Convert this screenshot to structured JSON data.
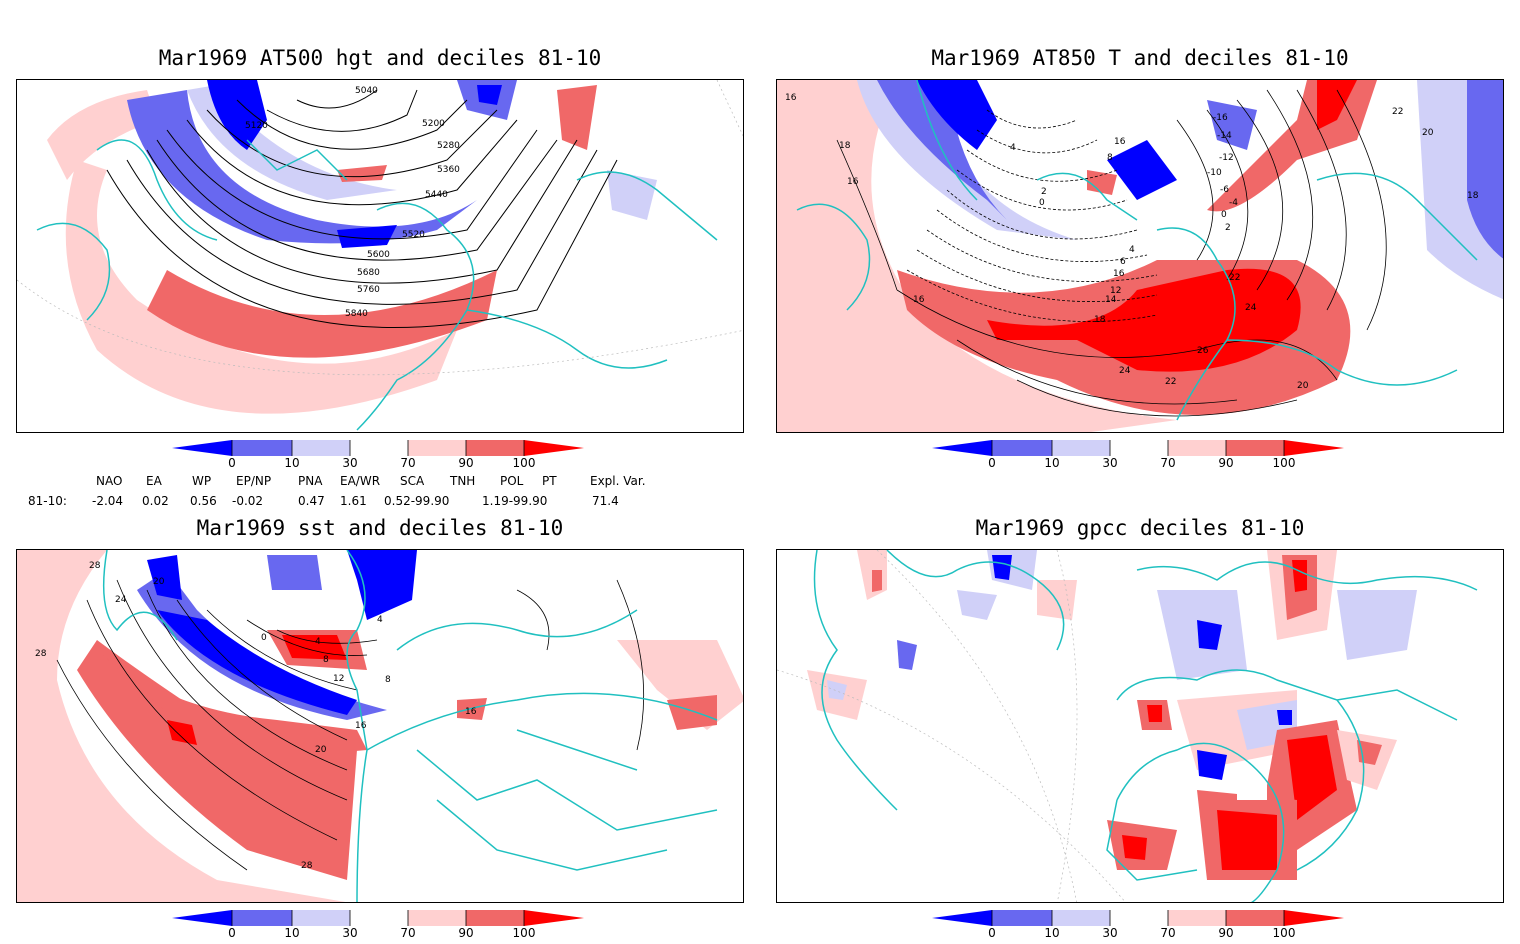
{
  "panels": [
    {
      "title": "Mar1969 AT500 hgt and deciles 81-10",
      "contour_labels": [
        "5040",
        "5120",
        "5200",
        "5280",
        "5360",
        "5440",
        "5520",
        "5600",
        "5680",
        "5760",
        "5840"
      ]
    },
    {
      "title": "Mar1969 AT850 T and deciles 81-10",
      "contour_labels": [
        "16",
        "18",
        "16",
        "22",
        "20",
        "-16",
        "-14",
        "-12",
        "-10",
        "-6",
        "-4",
        "0",
        "2",
        "4",
        "8",
        "16",
        "22",
        "24",
        "26",
        "24",
        "22",
        "20",
        "16",
        "14",
        "12",
        "6",
        "4",
        "0",
        "2",
        "18",
        "16",
        "18"
      ]
    },
    {
      "title": "Mar1969 sst and deciles 81-10",
      "contour_labels": [
        "28",
        "24",
        "20",
        "28",
        "0",
        "4",
        "8",
        "12",
        "16",
        "20",
        "28",
        "16",
        "4",
        "8"
      ]
    },
    {
      "title": "Mar1969 gpcc deciles 81-10",
      "contour_labels": []
    }
  ],
  "colorbar": {
    "tick_labels": [
      "0",
      "10",
      "30",
      "70",
      "90",
      "100"
    ],
    "colors": [
      "#0000ff",
      "#6868f0",
      "#d0d0f8",
      "#ffffff",
      "#ffd0d0",
      "#f06868",
      "#ff0000"
    ]
  },
  "index_table": {
    "headers": [
      "NAO",
      "EA",
      "WP",
      "EP/NP",
      "PNA",
      "EA/WR",
      "SCA",
      "TNH",
      "POL",
      "PT",
      "Expl. Var."
    ],
    "row_label": "81-10:",
    "values": [
      "-2.04",
      "0.02",
      "0.56",
      "-0.02",
      "0.47",
      "1.61",
      "0.52-99.90",
      "",
      "1.19-99.90",
      "",
      "71.4"
    ]
  },
  "colors": {
    "coast": "#20c0c0",
    "frame": "#000000",
    "contour": "#000000"
  }
}
